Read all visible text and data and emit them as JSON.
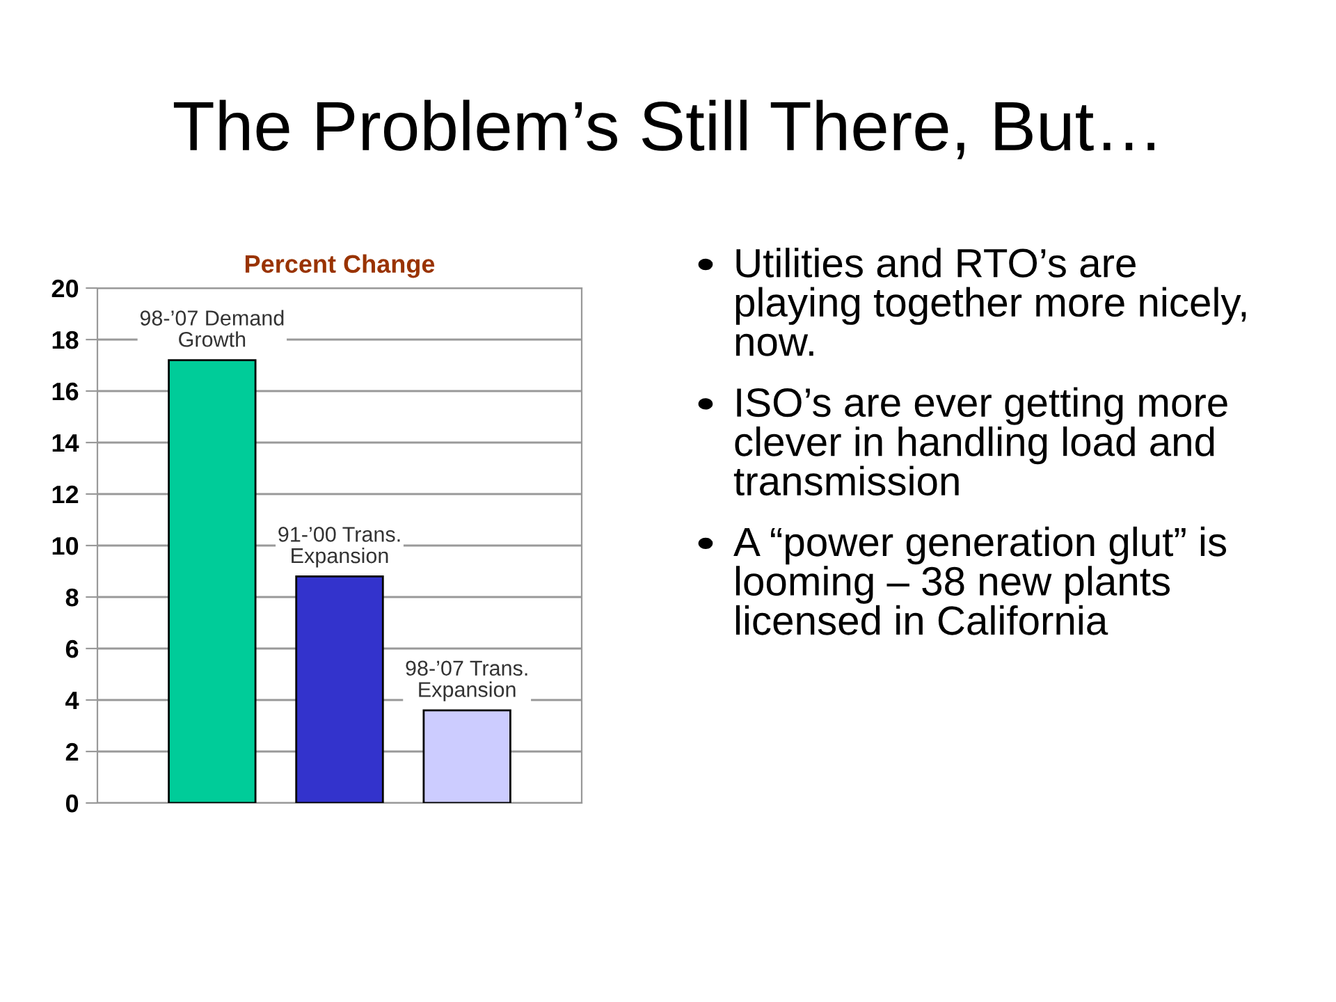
{
  "chart_data": {
    "type": "bar",
    "title": "The Problem’s Still There, But…",
    "subtitle": "Percent Change",
    "categories": [
      "98-’07 Demand Growth",
      "91-’00 Trans. Expansion",
      "98-’07 Trans. Expansion"
    ],
    "values": [
      17.2,
      8.8,
      3.6
    ],
    "colors": [
      "#00cc99",
      "#3333cc",
      "#ccccff"
    ],
    "ylim": [
      0,
      20
    ],
    "yticks": [
      0,
      2,
      4,
      6,
      8,
      10,
      12,
      14,
      16,
      18,
      20
    ],
    "grid": "y",
    "annotations": [
      "Utilities and RTO’s are playing together more nicely, now.",
      "ISO’s are ever getting more clever in handling load and transmission",
      "A “power generation glut” is looming – 38 new plants licensed in California"
    ]
  }
}
